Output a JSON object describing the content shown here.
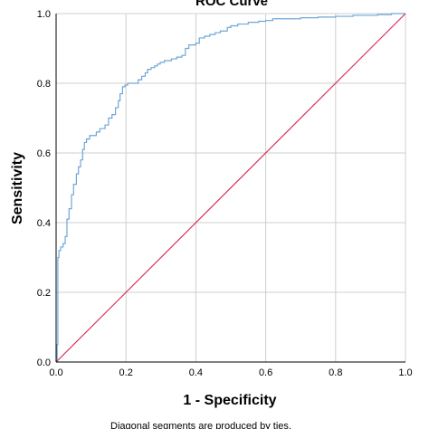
{
  "chart_data": {
    "type": "line",
    "title": "ROC Curve",
    "xlabel": "1 - Specificity",
    "ylabel": "Sensitivity",
    "xlim": [
      0,
      1
    ],
    "ylim": [
      0,
      1
    ],
    "xticks": [
      "0.0",
      "0.2",
      "0.4",
      "0.6",
      "0.8",
      "1.0"
    ],
    "yticks": [
      "0.0",
      "0.2",
      "0.4",
      "0.6",
      "0.8",
      "1.0"
    ],
    "grid": true,
    "footnote": "Diagonal segments are produced by ties.",
    "colors": {
      "roc": "#6ea6d8",
      "reference": "#d6325c",
      "grid": "#cfcfcf",
      "axis": "#000000"
    },
    "series": [
      {
        "x": [
          0,
          0.003,
          0.003,
          0.005,
          0.005,
          0.008,
          0.008,
          0.013,
          0.013,
          0.02,
          0.02,
          0.026,
          0.026,
          0.031,
          0.031,
          0.037,
          0.037,
          0.044,
          0.044,
          0.05,
          0.05,
          0.058,
          0.058,
          0.064,
          0.064,
          0.07,
          0.07,
          0.076,
          0.076,
          0.081,
          0.081,
          0.087,
          0.087,
          0.096,
          0.096,
          0.115,
          0.115,
          0.125,
          0.125,
          0.14,
          0.14,
          0.15,
          0.15,
          0.16,
          0.16,
          0.17,
          0.17,
          0.178,
          0.178,
          0.183,
          0.183,
          0.19,
          0.19,
          0.197,
          0.197,
          0.205,
          0.205,
          0.235,
          0.235,
          0.245,
          0.245,
          0.255,
          0.255,
          0.262,
          0.262,
          0.272,
          0.272,
          0.282,
          0.282,
          0.29,
          0.29,
          0.298,
          0.298,
          0.31,
          0.31,
          0.33,
          0.33,
          0.345,
          0.345,
          0.36,
          0.36,
          0.37,
          0.37,
          0.38,
          0.38,
          0.4,
          0.4,
          0.41,
          0.41,
          0.425,
          0.425,
          0.44,
          0.44,
          0.455,
          0.455,
          0.47,
          0.47,
          0.49,
          0.49,
          0.5,
          0.5,
          0.52,
          0.52,
          0.55,
          0.55,
          0.58,
          0.58,
          0.6,
          0.6,
          0.62,
          0.62,
          0.7,
          0.7,
          0.75,
          0.75,
          0.8,
          0.8,
          0.85,
          0.85,
          0.92,
          0.92,
          0.96,
          0.96,
          1.0
        ],
        "y": [
          0,
          0,
          0.05,
          0.05,
          0.3,
          0.3,
          0.32,
          0.32,
          0.33,
          0.33,
          0.34,
          0.34,
          0.36,
          0.36,
          0.41,
          0.41,
          0.44,
          0.44,
          0.48,
          0.48,
          0.51,
          0.51,
          0.54,
          0.54,
          0.56,
          0.56,
          0.58,
          0.58,
          0.61,
          0.61,
          0.63,
          0.63,
          0.64,
          0.64,
          0.65,
          0.65,
          0.66,
          0.66,
          0.67,
          0.67,
          0.68,
          0.68,
          0.7,
          0.7,
          0.71,
          0.71,
          0.73,
          0.73,
          0.75,
          0.75,
          0.77,
          0.77,
          0.79,
          0.79,
          0.795,
          0.795,
          0.8,
          0.8,
          0.81,
          0.81,
          0.82,
          0.82,
          0.83,
          0.83,
          0.84,
          0.84,
          0.845,
          0.845,
          0.85,
          0.85,
          0.855,
          0.855,
          0.86,
          0.86,
          0.865,
          0.865,
          0.87,
          0.87,
          0.875,
          0.875,
          0.88,
          0.88,
          0.9,
          0.9,
          0.91,
          0.91,
          0.915,
          0.915,
          0.93,
          0.93,
          0.935,
          0.935,
          0.94,
          0.94,
          0.945,
          0.945,
          0.95,
          0.95,
          0.96,
          0.96,
          0.965,
          0.965,
          0.97,
          0.97,
          0.975,
          0.975,
          0.978,
          0.978,
          0.98,
          0.98,
          0.985,
          0.985,
          0.988,
          0.988,
          0.99,
          0.99,
          0.992,
          0.992,
          0.995,
          0.995,
          0.997,
          0.997,
          1.0,
          1.0
        ]
      },
      {
        "x": [
          0,
          1
        ],
        "y": [
          0,
          1
        ]
      }
    ]
  }
}
